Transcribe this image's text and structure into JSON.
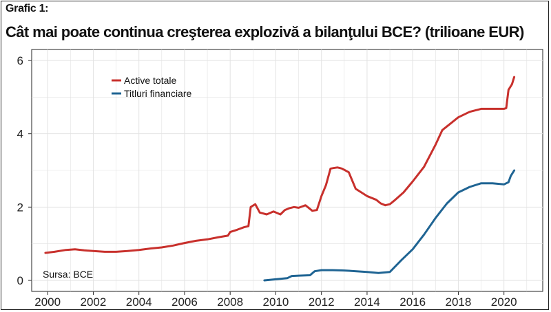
{
  "figure_label": "Grafic 1:",
  "title": "Cât mai poate continua creşterea explozivă a bilanţului BCE? (trilioane EUR)",
  "source": "Sursa: BCE",
  "colors": {
    "active_totale": "#c8302c",
    "titluri_financiare": "#1f6493",
    "grid": "#e2e2e2"
  },
  "chart_data": {
    "type": "line",
    "title": "Cât mai poate continua creşterea explozivă a bilanţului BCE? (trilioane EUR)",
    "xlim": [
      1999.3,
      2021.7
    ],
    "ylim": [
      -0.3,
      6.3
    ],
    "x_ticks": [
      2000,
      2002,
      2004,
      2006,
      2008,
      2010,
      2012,
      2014,
      2016,
      2018,
      2020
    ],
    "y_ticks": [
      0,
      2,
      4,
      6
    ],
    "grid": true,
    "legend_position": "top-left",
    "series": [
      {
        "name": "Active totale",
        "color": "#c8302c",
        "x": [
          1999.9,
          2000.3,
          2000.8,
          2001.2,
          2001.6,
          2002.0,
          2002.5,
          2003.0,
          2003.5,
          2004.0,
          2004.5,
          2005.0,
          2005.5,
          2006.0,
          2006.5,
          2007.0,
          2007.5,
          2007.9,
          2008.0,
          2008.3,
          2008.6,
          2008.8,
          2008.9,
          2009.1,
          2009.3,
          2009.6,
          2009.9,
          2010.2,
          2010.4,
          2010.6,
          2010.8,
          2011.0,
          2011.3,
          2011.6,
          2011.8,
          2012.0,
          2012.2,
          2012.4,
          2012.7,
          2012.9,
          2013.2,
          2013.5,
          2014.0,
          2014.4,
          2014.6,
          2014.8,
          2015.0,
          2015.2,
          2015.6,
          2016.0,
          2016.5,
          2017.0,
          2017.3,
          2017.6,
          2018.0,
          2018.5,
          2019.0,
          2019.5,
          2020.0,
          2020.1,
          2020.2,
          2020.35,
          2020.45
        ],
        "values": [
          0.75,
          0.78,
          0.83,
          0.85,
          0.82,
          0.8,
          0.78,
          0.78,
          0.8,
          0.83,
          0.87,
          0.9,
          0.95,
          1.02,
          1.08,
          1.12,
          1.18,
          1.22,
          1.32,
          1.38,
          1.45,
          1.48,
          2.0,
          2.08,
          1.85,
          1.8,
          1.88,
          1.8,
          1.92,
          1.97,
          2.0,
          1.98,
          2.05,
          1.9,
          1.92,
          2.3,
          2.6,
          3.05,
          3.08,
          3.05,
          2.95,
          2.5,
          2.3,
          2.2,
          2.1,
          2.05,
          2.08,
          2.18,
          2.4,
          2.7,
          3.1,
          3.7,
          4.1,
          4.25,
          4.45,
          4.6,
          4.68,
          4.68,
          4.68,
          4.7,
          5.2,
          5.35,
          5.55
        ]
      },
      {
        "name": "Titluri financiare",
        "color": "#1f6493",
        "x": [
          2009.5,
          2010.0,
          2010.5,
          2010.7,
          2011.0,
          2011.5,
          2011.7,
          2012.0,
          2012.5,
          2013.0,
          2014.0,
          2014.5,
          2015.0,
          2015.5,
          2016.0,
          2016.5,
          2017.0,
          2017.5,
          2018.0,
          2018.5,
          2019.0,
          2019.5,
          2020.0,
          2020.2,
          2020.3,
          2020.45
        ],
        "values": [
          0.0,
          0.03,
          0.06,
          0.12,
          0.13,
          0.14,
          0.25,
          0.28,
          0.28,
          0.27,
          0.23,
          0.2,
          0.23,
          0.55,
          0.85,
          1.25,
          1.7,
          2.1,
          2.4,
          2.55,
          2.65,
          2.65,
          2.62,
          2.68,
          2.85,
          3.0
        ]
      }
    ]
  }
}
